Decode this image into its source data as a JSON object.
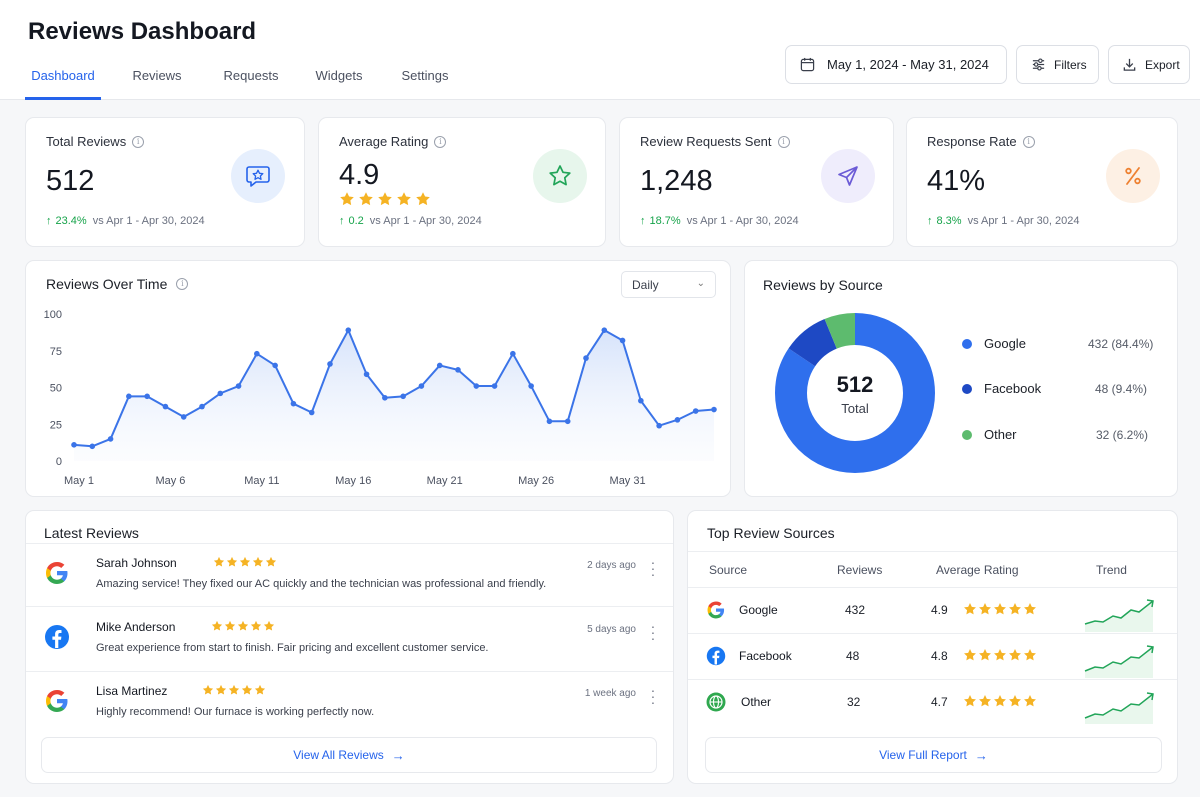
{
  "header": {
    "title": "Reviews Dashboard",
    "tabs": [
      {
        "label": "Dashboard",
        "active": true
      },
      {
        "label": "Reviews",
        "active": false
      },
      {
        "label": "Requests",
        "active": false
      },
      {
        "label": "Widgets",
        "active": false
      },
      {
        "label": "Settings",
        "active": false
      }
    ],
    "date_range": "May 1, 2024 - May 31, 2024",
    "filters_label": "Filters",
    "export_label": "Export"
  },
  "kpis": [
    {
      "label": "Total Reviews",
      "value": "512",
      "delta": "23.4%",
      "compare": "vs Apr 1 - Apr 30, 2024",
      "icon": "review-star-icon",
      "badge_color": "#e6effd",
      "icon_color": "#2563eb"
    },
    {
      "label": "Average Rating",
      "value": "4.9",
      "stars": 5,
      "delta": "0.2",
      "compare": "vs Apr 1 - Apr 30, 2024",
      "icon": "star-icon",
      "badge_color": "#e7f6ec",
      "icon_color": "#22a559"
    },
    {
      "label": "Review Requests Sent",
      "value": "1,248",
      "delta": "18.7%",
      "compare": "vs Apr 1 - Apr 30, 2024",
      "icon": "send-icon",
      "badge_color": "#efedfc",
      "icon_color": "#6b5bd6"
    },
    {
      "label": "Response Rate",
      "value": "41%",
      "delta": "8.3%",
      "compare": "vs Apr 1 - Apr 30, 2024",
      "icon": "percent-icon",
      "badge_color": "#fdf0e4",
      "icon_color": "#ee8131"
    }
  ],
  "reviews_over_time": {
    "title": "Reviews Over Time",
    "granularity": "Daily"
  },
  "chart_data": [
    {
      "type": "area",
      "title": "Reviews Over Time",
      "x_ticks": [
        "May 1",
        "May 6",
        "May 11",
        "May 16",
        "May 21",
        "May 26",
        "May 31"
      ],
      "y_ticks": [
        "0",
        "25",
        "50",
        "75",
        "100"
      ],
      "ylim": [
        0,
        100
      ],
      "x": [
        1,
        2,
        3,
        4,
        5,
        6,
        7,
        8,
        9,
        10,
        11,
        12,
        13,
        14,
        15,
        16,
        17,
        18,
        19,
        20,
        21,
        22,
        23,
        24,
        25,
        26,
        27,
        28,
        29,
        30,
        31,
        32,
        33,
        34,
        35,
        36
      ],
      "values": [
        11,
        10,
        15,
        44,
        44,
        37,
        30,
        37,
        46,
        51,
        73,
        65,
        39,
        33,
        66,
        89,
        59,
        43,
        44,
        51,
        65,
        62,
        51,
        51,
        73,
        51,
        27,
        27,
        70,
        89,
        82,
        41,
        24,
        28,
        34,
        35
      ],
      "color": "#3b74e8",
      "grid": false
    },
    {
      "type": "pie",
      "title": "Reviews by Source",
      "center_value": "512",
      "center_label": "Total",
      "categories": [
        "Google",
        "Facebook",
        "Other"
      ],
      "values": [
        432,
        48,
        32
      ],
      "labels": [
        "432 (84.4%)",
        "48 (9.4%)",
        "32 (6.2%)"
      ],
      "colors": [
        "#2f6fed",
        "#1e49c4",
        "#5dbb6e"
      ],
      "legend": "right"
    }
  ],
  "latest_reviews": {
    "title": "Latest Reviews",
    "items": [
      {
        "name": "Sarah Johnson",
        "source_icon": "google-icon",
        "stars": 5,
        "time": "2 days ago",
        "text": "Amazing service! They fixed our AC quickly and the technician was professional and friendly."
      },
      {
        "name": "Mike Anderson",
        "source_icon": "facebook-icon",
        "stars": 5,
        "time": "5 days ago",
        "text": "Great experience from start to finish. Fair pricing and excellent customer service."
      },
      {
        "name": "Lisa Martinez",
        "source_icon": "google-icon",
        "stars": 5,
        "time": "1 week ago",
        "text": "Highly recommend! Our furnace is working perfectly now."
      }
    ],
    "view_all": "View All Reviews"
  },
  "top_sources": {
    "title": "Top Review Sources",
    "columns": [
      "Source",
      "Reviews",
      "Average Rating",
      "Trend"
    ],
    "rows": [
      {
        "source": "Google",
        "icon": "google-icon",
        "reviews": "432",
        "rating": "4.9",
        "stars": 5
      },
      {
        "source": "Facebook",
        "icon": "facebook-icon",
        "reviews": "48",
        "rating": "4.8",
        "stars": 5
      },
      {
        "source": "Other",
        "icon": "globe-icon",
        "reviews": "32",
        "rating": "4.7",
        "stars": 5
      }
    ],
    "view_report": "View Full Report"
  },
  "colors": {
    "accent": "#2563eb",
    "positive": "#16a34a",
    "star": "#f5b324"
  }
}
